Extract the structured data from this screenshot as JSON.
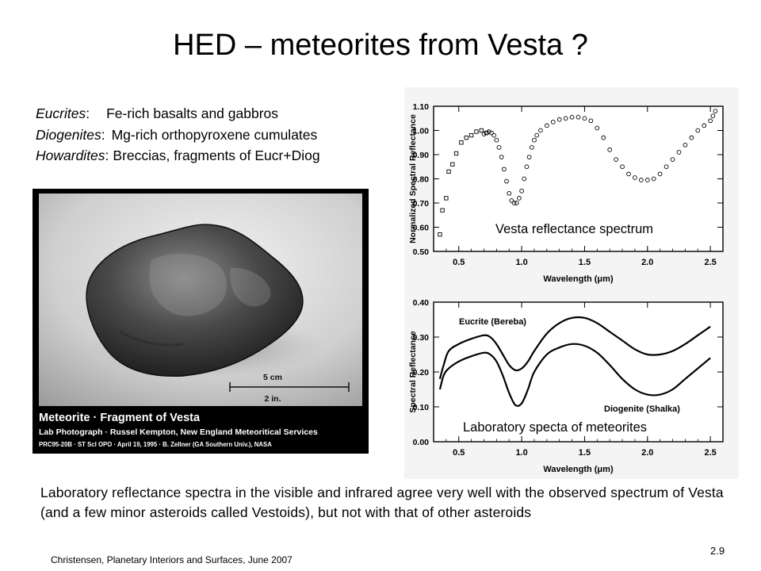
{
  "slide": {
    "title": "HED – meteorites from Vesta ?",
    "types": [
      {
        "name": "Eucrites",
        "desc": "Fe-rich basalts and gabbros"
      },
      {
        "name": "Diogenites",
        "desc": "Mg-rich orthopyroxene cumulates"
      },
      {
        "name": "Howardites",
        "desc": "Breccias, fragments of Eucr+Diog"
      }
    ],
    "caption": "Laboratory reflectance spectra in the visible and infrared agree very well with the observed spectrum of Vesta (and a few minor asteroids called Vestoids), but not with that of other asteroids",
    "footer": "Christensen, Planetary Interiors and Surfaces, June 2007",
    "page_number": "2.9"
  },
  "photo": {
    "scale_cm": "5 cm",
    "scale_in": "2 in.",
    "title": "Meteorite · Fragment of Vesta",
    "credit": "Lab Photograph · Russel Kempton, New England Meteoritical Services",
    "ref": "PRC95-20B · ST ScI OPO · April 19, 1995 · B. Zellner (GA Southern Univ.), NASA"
  },
  "chart_data": [
    {
      "type": "scatter",
      "overlay_label": "Vesta reflectance spectrum",
      "xlabel": "Wavelength  (μm)",
      "ylabel": "Normalized  Spectral  Reflectance",
      "xlim": [
        0.3,
        2.6
      ],
      "ylim": [
        0.5,
        1.1
      ],
      "xticks": [
        "0.5",
        "1.0",
        "1.5",
        "2.0",
        "2.5"
      ],
      "yticks": [
        "0.50",
        "0.60",
        "0.70",
        "0.80",
        "0.90",
        "1.00",
        "1.10"
      ],
      "series": [
        {
          "marker": "square",
          "x": [
            0.35,
            0.37,
            0.4,
            0.42,
            0.45,
            0.48,
            0.52,
            0.56,
            0.6,
            0.64,
            0.68,
            0.72
          ],
          "y": [
            0.57,
            0.67,
            0.72,
            0.83,
            0.86,
            0.905,
            0.95,
            0.97,
            0.98,
            0.995,
            1.0,
            0.99
          ]
        },
        {
          "marker": "circle",
          "x": [
            0.7,
            0.72,
            0.74,
            0.76,
            0.78,
            0.8,
            0.82,
            0.84,
            0.86,
            0.88,
            0.9,
            0.92,
            0.94,
            0.96,
            0.98,
            1.0,
            1.02,
            1.04,
            1.06,
            1.08,
            1.1,
            1.12,
            1.15,
            1.2,
            1.25,
            1.3,
            1.35,
            1.4,
            1.45,
            1.5,
            1.55,
            1.6,
            1.65,
            1.7,
            1.75,
            1.8,
            1.85,
            1.9,
            1.95,
            2.0,
            2.05,
            2.1,
            2.15,
            2.2,
            2.25,
            2.3,
            2.35,
            2.4,
            2.45,
            2.5,
            2.52,
            2.54
          ],
          "y": [
            0.985,
            0.99,
            0.995,
            0.99,
            0.98,
            0.96,
            0.93,
            0.89,
            0.84,
            0.79,
            0.74,
            0.71,
            0.7,
            0.7,
            0.72,
            0.75,
            0.8,
            0.85,
            0.89,
            0.93,
            0.96,
            0.98,
            1.0,
            1.02,
            1.035,
            1.045,
            1.05,
            1.055,
            1.055,
            1.05,
            1.04,
            1.01,
            0.97,
            0.92,
            0.88,
            0.85,
            0.82,
            0.805,
            0.795,
            0.795,
            0.8,
            0.82,
            0.85,
            0.88,
            0.91,
            0.94,
            0.97,
            1.0,
            1.02,
            1.04,
            1.06,
            1.08
          ]
        }
      ]
    },
    {
      "type": "line",
      "overlay_label": "Laboratory specta  of meteorites",
      "xlabel": "Wavelength  (μm)",
      "ylabel": "Spectral  Reflectance",
      "xlim": [
        0.3,
        2.6
      ],
      "ylim": [
        0.0,
        0.4
      ],
      "xticks": [
        "0.5",
        "1.0",
        "1.5",
        "2.0",
        "2.5"
      ],
      "yticks": [
        "0.00",
        "0.10",
        "0.20",
        "0.30",
        "0.40"
      ],
      "series": [
        {
          "name": "Eucrite    (Bereba)",
          "x": [
            0.35,
            0.38,
            0.42,
            0.5,
            0.6,
            0.7,
            0.75,
            0.8,
            0.85,
            0.9,
            0.95,
            1.0,
            1.05,
            1.1,
            1.2,
            1.3,
            1.4,
            1.5,
            1.6,
            1.7,
            1.8,
            1.9,
            2.0,
            2.1,
            2.2,
            2.3,
            2.4,
            2.5
          ],
          "y": [
            0.18,
            0.22,
            0.26,
            0.28,
            0.295,
            0.305,
            0.3,
            0.28,
            0.25,
            0.22,
            0.205,
            0.21,
            0.23,
            0.26,
            0.31,
            0.34,
            0.355,
            0.355,
            0.34,
            0.315,
            0.29,
            0.265,
            0.25,
            0.25,
            0.26,
            0.28,
            0.305,
            0.33
          ]
        },
        {
          "name": "Diogenite    (Shalka)",
          "x": [
            0.35,
            0.38,
            0.42,
            0.5,
            0.6,
            0.7,
            0.75,
            0.8,
            0.85,
            0.9,
            0.95,
            1.0,
            1.05,
            1.1,
            1.2,
            1.3,
            1.4,
            1.5,
            1.6,
            1.7,
            1.8,
            1.9,
            2.0,
            2.1,
            2.2,
            2.3,
            2.4,
            2.5
          ],
          "y": [
            0.15,
            0.19,
            0.21,
            0.23,
            0.245,
            0.255,
            0.25,
            0.23,
            0.19,
            0.14,
            0.105,
            0.11,
            0.15,
            0.2,
            0.25,
            0.27,
            0.28,
            0.275,
            0.255,
            0.22,
            0.18,
            0.15,
            0.135,
            0.135,
            0.15,
            0.18,
            0.21,
            0.24
          ]
        }
      ]
    }
  ]
}
